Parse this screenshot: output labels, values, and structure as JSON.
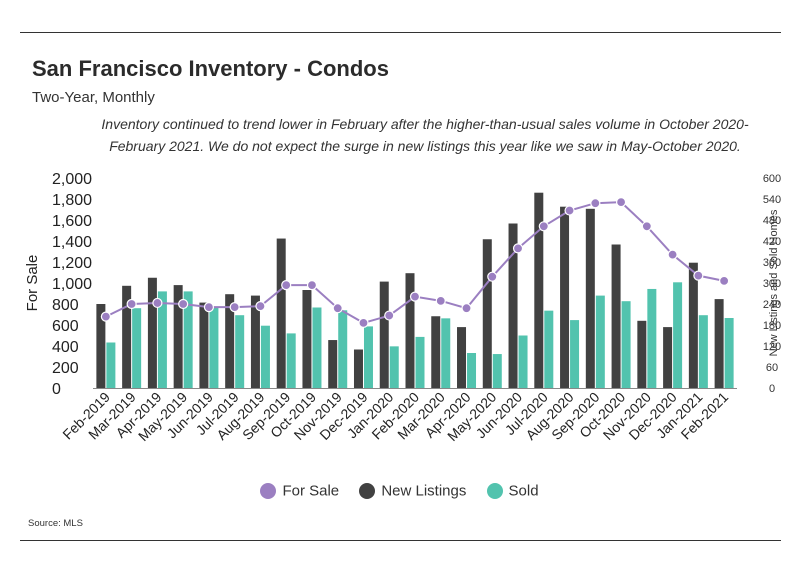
{
  "title": "San Francisco Inventory - Condos",
  "subtitle": "Two-Year, Monthly",
  "note": "Inventory continued to trend lower in February after the higher-than-usual sales volume in October 2020-February 2021. We do not expect the surge in new listings this year like we saw in May-October 2020.",
  "source": "Source:  MLS",
  "colors": {
    "for_sale": "#9b7fc1",
    "new_listings": "#414141",
    "sold": "#52c3ae",
    "line": "#9b7fc1"
  },
  "chart_data": {
    "type": "bar",
    "categories": [
      "Feb-2019",
      "Mar-2019",
      "Apr-2019",
      "May-2019",
      "Jun-2019",
      "Jul-2019",
      "Aug-2019",
      "Sep-2019",
      "Oct-2019",
      "Nov-2019",
      "Dec-2019",
      "Jan-2020",
      "Feb-2020",
      "Mar-2020",
      "Apr-2020",
      "May-2020",
      "Jun-2020",
      "Jul-2020",
      "Aug-2020",
      "Sep-2020",
      "Oct-2020",
      "Nov-2020",
      "Dec-2020",
      "Jan-2021",
      "Feb-2021"
    ],
    "series": [
      {
        "name": "For Sale",
        "type": "line",
        "axis": "left",
        "values": [
          680,
          800,
          810,
          800,
          770,
          770,
          780,
          980,
          980,
          760,
          620,
          690,
          870,
          830,
          760,
          1060,
          1330,
          1540,
          1690,
          1760,
          1770,
          1540,
          1270,
          1070,
          1020
        ]
      },
      {
        "name": "New Listings",
        "type": "bar",
        "axis": "right",
        "values": [
          240,
          292,
          315,
          294,
          244,
          268,
          264,
          427,
          280,
          137,
          110,
          304,
          328,
          205,
          174,
          425,
          470,
          558,
          518,
          512,
          410,
          192,
          174,
          358,
          254
        ]
      },
      {
        "name": "Sold",
        "type": "bar",
        "axis": "right",
        "values": [
          130,
          228,
          276,
          276,
          230,
          208,
          178,
          156,
          230,
          222,
          176,
          119,
          146,
          199,
          100,
          97,
          150,
          221,
          194,
          264,
          248,
          283,
          302,
          208,
          200
        ]
      }
    ],
    "ylabel": "For Sale",
    "y2label": "New Listings and Sold Homes",
    "ylim": [
      0,
      2000
    ],
    "y2lim": [
      0,
      600
    ],
    "yticks": [
      "0",
      "200",
      "400",
      "600",
      "800",
      "1,000",
      "1,200",
      "1,400",
      "1,600",
      "1,800",
      "2,000"
    ],
    "y2ticks": [
      "0",
      "60",
      "120",
      "180",
      "240",
      "300",
      "360",
      "420",
      "480",
      "540",
      "600"
    ],
    "grid": false,
    "legend_position": "bottom"
  }
}
